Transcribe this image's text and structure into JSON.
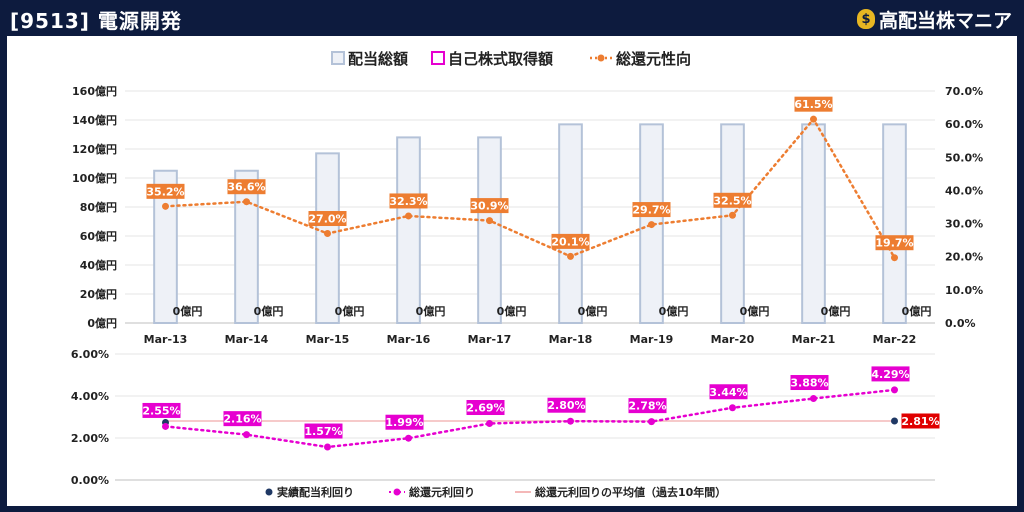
{
  "header": {
    "title": "[9513] 電源開発",
    "brand": "高配当株マニア",
    "brand_icon": "money-bag-icon"
  },
  "chart_data": [
    {
      "type": "bar",
      "categories": [
        "Mar-13",
        "Mar-14",
        "Mar-15",
        "Mar-16",
        "Mar-17",
        "Mar-18",
        "Mar-19",
        "Mar-20",
        "Mar-21",
        "Mar-22"
      ],
      "series": [
        {
          "name": "配当総額",
          "kind": "bar",
          "axis": "left",
          "color": "#b4c2d8",
          "fill": "#eef1f7",
          "values": [
            105,
            105,
            117,
            128,
            128,
            137,
            137,
            137,
            137,
            137
          ]
        },
        {
          "name": "自己株式取得額",
          "kind": "bar",
          "axis": "left",
          "color": "#e600d0",
          "fill": "#ffffff",
          "values": [
            0,
            0,
            0,
            0,
            0,
            0,
            0,
            0,
            0,
            0
          ],
          "labels": [
            "0億円",
            "0億円",
            "0億円",
            "0億円",
            "0億円",
            "0億円",
            "0億円",
            "0億円",
            "0億円",
            "0億円"
          ]
        },
        {
          "name": "総還元性向",
          "kind": "line",
          "axis": "right",
          "color": "#ed7d31",
          "values": [
            35.2,
            36.6,
            27.0,
            32.3,
            30.9,
            20.1,
            29.7,
            32.5,
            61.5,
            19.7
          ],
          "labels": [
            "35.2%",
            "36.6%",
            "27.0%",
            "32.3%",
            "30.9%",
            "20.1%",
            "29.7%",
            "32.5%",
            "61.5%",
            "19.7%"
          ]
        }
      ],
      "yleft": {
        "ylim": [
          0,
          160
        ],
        "ticks": [
          "0億円",
          "20億円",
          "40億円",
          "60億円",
          "80億円",
          "100億円",
          "120億円",
          "140億円",
          "160億円"
        ]
      },
      "yright": {
        "ylim": [
          0,
          70
        ],
        "ticks": [
          "0.0%",
          "10.0%",
          "20.0%",
          "30.0%",
          "40.0%",
          "50.0%",
          "60.0%",
          "70.0%"
        ]
      },
      "legend_position": "top-center",
      "grid": true
    },
    {
      "type": "line",
      "categories": [
        "Mar-13",
        "Mar-14",
        "Mar-15",
        "Mar-16",
        "Mar-17",
        "Mar-18",
        "Mar-19",
        "Mar-20",
        "Mar-21",
        "Mar-22"
      ],
      "series": [
        {
          "name": "実績配当利回り",
          "color": "#1f3864",
          "values": [
            2.74,
            null,
            null,
            null,
            null,
            null,
            null,
            null,
            null,
            2.81
          ]
        },
        {
          "name": "総還元利回り",
          "color": "#e600d0",
          "values": [
            2.55,
            2.16,
            1.57,
            1.99,
            2.69,
            2.8,
            2.78,
            3.44,
            3.88,
            4.29
          ],
          "labels": [
            "2.55%",
            "2.16%",
            "1.57%",
            "1.99%",
            "2.69%",
            "2.80%",
            "2.78%",
            "3.44%",
            "3.88%",
            "4.29%"
          ]
        },
        {
          "name": "総還元利回りの平均値（過去10年間）",
          "color": "#f4b8b8",
          "value": 2.81
        }
      ],
      "last_value_label": "2.81%",
      "ylim": [
        0,
        6
      ],
      "yticks": [
        "0.00%",
        "2.00%",
        "4.00%",
        "6.00%"
      ],
      "legend_position": "bottom-center",
      "grid": true
    }
  ]
}
